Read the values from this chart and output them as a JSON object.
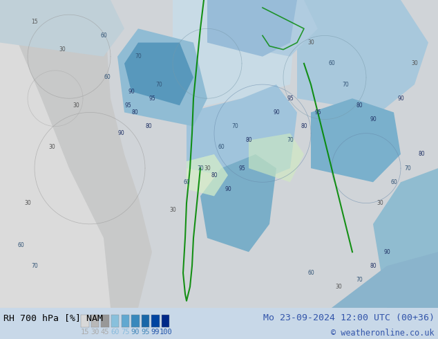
{
  "title_left": "RH 700 hPa [%] NAM",
  "title_right": "Mo 23-09-2024 12:00 UTC (00+36)",
  "copyright": "© weatheronline.co.uk",
  "legend_values": [
    15,
    30,
    45,
    60,
    75,
    90,
    95,
    99,
    100
  ],
  "legend_text_colors": [
    "#aaaaaa",
    "#aaaaaa",
    "#aaaaaa",
    "#88bbdd",
    "#88bbdd",
    "#4488bb",
    "#4488bb",
    "#2255aa",
    "#2255aa"
  ],
  "bottom_bg": "#c8d8e8",
  "title_left_color": "#000000",
  "title_right_color": "#3355aa",
  "copyright_color": "#3355aa",
  "figsize": [
    6.34,
    4.9
  ],
  "dpi": 100,
  "map_colors": {
    "ocean_low": "#d8e8f0",
    "land_gray_low": "#e0e0e0",
    "land_gray_mid": "#c8c8c8",
    "land_gray_dark": "#a0a0a0",
    "blue_light": "#b8d4e8",
    "blue_mid": "#88b8d8",
    "blue_dark": "#4488b8",
    "blue_darkest": "#2255a0",
    "green_light": "#d0f0c0",
    "green_line": "#008800"
  }
}
